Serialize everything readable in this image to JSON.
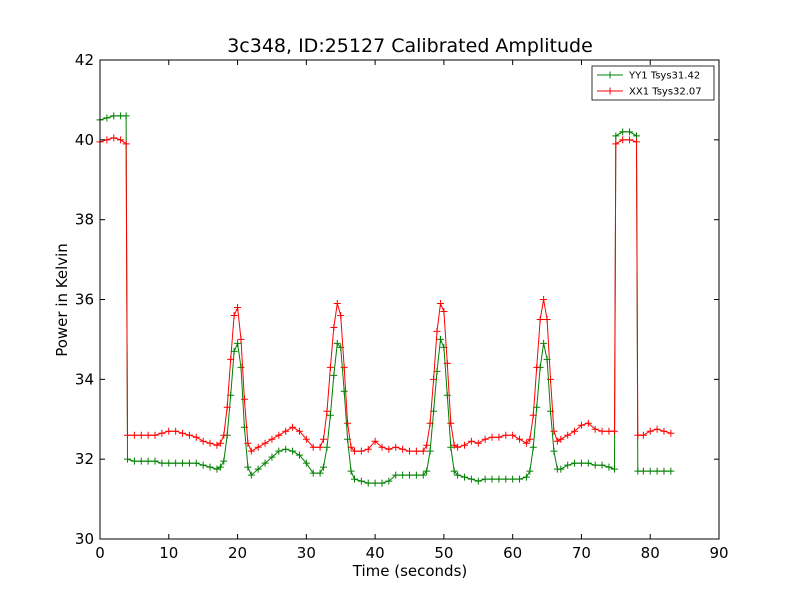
{
  "chart_data": {
    "type": "line",
    "title": "3c348, ID:25127 Calibrated Amplitude",
    "xlabel": "Time (seconds)",
    "ylabel": "Power in Kelvin",
    "xlim": [
      0,
      90
    ],
    "ylim": [
      30,
      42
    ],
    "xticks": [
      0,
      10,
      20,
      30,
      40,
      50,
      60,
      70,
      80,
      90
    ],
    "yticks": [
      30,
      32,
      34,
      36,
      38,
      40,
      42
    ],
    "grid": false,
    "legend_position": "top-right",
    "marker": "+",
    "series": [
      {
        "name": "YY1 Tsys31.42",
        "color": "#008000",
        "points": [
          [
            0,
            40.5
          ],
          [
            1,
            40.55
          ],
          [
            2,
            40.6
          ],
          [
            3,
            40.6
          ],
          [
            3.8,
            40.6
          ],
          [
            4,
            32.0
          ],
          [
            5,
            31.95
          ],
          [
            6,
            31.95
          ],
          [
            7,
            31.95
          ],
          [
            8,
            31.95
          ],
          [
            9,
            31.9
          ],
          [
            10,
            31.9
          ],
          [
            11,
            31.9
          ],
          [
            12,
            31.9
          ],
          [
            13,
            31.9
          ],
          [
            14,
            31.9
          ],
          [
            15,
            31.85
          ],
          [
            16,
            31.8
          ],
          [
            17,
            31.75
          ],
          [
            17.5,
            31.8
          ],
          [
            18,
            31.95
          ],
          [
            18.5,
            32.6
          ],
          [
            19,
            33.6
          ],
          [
            19.5,
            34.7
          ],
          [
            20,
            34.9
          ],
          [
            20.5,
            34.3
          ],
          [
            21,
            32.8
          ],
          [
            21.5,
            31.8
          ],
          [
            22,
            31.6
          ],
          [
            23,
            31.75
          ],
          [
            24,
            31.9
          ],
          [
            25,
            32.05
          ],
          [
            26,
            32.2
          ],
          [
            27,
            32.25
          ],
          [
            28,
            32.2
          ],
          [
            29,
            32.1
          ],
          [
            30,
            31.9
          ],
          [
            31,
            31.65
          ],
          [
            32,
            31.65
          ],
          [
            32.5,
            31.8
          ],
          [
            33,
            32.3
          ],
          [
            33.5,
            33.1
          ],
          [
            34,
            34.1
          ],
          [
            34.5,
            34.9
          ],
          [
            35,
            34.8
          ],
          [
            35.5,
            33.7
          ],
          [
            36,
            32.5
          ],
          [
            36.5,
            31.7
          ],
          [
            37,
            31.5
          ],
          [
            38,
            31.45
          ],
          [
            39,
            31.4
          ],
          [
            40,
            31.4
          ],
          [
            41,
            31.4
          ],
          [
            42,
            31.45
          ],
          [
            43,
            31.6
          ],
          [
            44,
            31.6
          ],
          [
            45,
            31.6
          ],
          [
            46,
            31.6
          ],
          [
            47,
            31.6
          ],
          [
            47.5,
            31.7
          ],
          [
            48,
            32.2
          ],
          [
            48.5,
            33.2
          ],
          [
            49,
            34.2
          ],
          [
            49.5,
            35.0
          ],
          [
            50,
            34.8
          ],
          [
            50.5,
            33.6
          ],
          [
            51,
            32.3
          ],
          [
            51.5,
            31.7
          ],
          [
            52,
            31.6
          ],
          [
            53,
            31.55
          ],
          [
            54,
            31.5
          ],
          [
            55,
            31.45
          ],
          [
            56,
            31.5
          ],
          [
            57,
            31.5
          ],
          [
            58,
            31.5
          ],
          [
            59,
            31.5
          ],
          [
            60,
            31.5
          ],
          [
            61,
            31.5
          ],
          [
            62,
            31.55
          ],
          [
            62.5,
            31.7
          ],
          [
            63,
            32.3
          ],
          [
            63.5,
            33.3
          ],
          [
            64,
            34.3
          ],
          [
            64.5,
            34.9
          ],
          [
            65,
            34.5
          ],
          [
            65.5,
            33.2
          ],
          [
            66,
            32.2
          ],
          [
            66.5,
            31.75
          ],
          [
            67,
            31.75
          ],
          [
            68,
            31.85
          ],
          [
            69,
            31.9
          ],
          [
            70,
            31.9
          ],
          [
            71,
            31.9
          ],
          [
            72,
            31.85
          ],
          [
            73,
            31.85
          ],
          [
            74,
            31.8
          ],
          [
            74.8,
            31.75
          ],
          [
            75,
            40.1
          ],
          [
            76,
            40.2
          ],
          [
            77,
            40.2
          ],
          [
            78,
            40.1
          ],
          [
            78.2,
            31.7
          ],
          [
            79,
            31.7
          ],
          [
            80,
            31.7
          ],
          [
            81,
            31.7
          ],
          [
            82,
            31.7
          ],
          [
            83,
            31.7
          ]
        ]
      },
      {
        "name": "XX1 Tsys32.07",
        "color": "#ff0000",
        "points": [
          [
            0,
            39.95
          ],
          [
            1,
            40.0
          ],
          [
            2,
            40.05
          ],
          [
            3,
            40.0
          ],
          [
            3.8,
            39.9
          ],
          [
            4,
            32.6
          ],
          [
            5,
            32.6
          ],
          [
            6,
            32.6
          ],
          [
            7,
            32.6
          ],
          [
            8,
            32.6
          ],
          [
            9,
            32.65
          ],
          [
            10,
            32.7
          ],
          [
            11,
            32.7
          ],
          [
            12,
            32.65
          ],
          [
            13,
            32.6
          ],
          [
            14,
            32.55
          ],
          [
            15,
            32.45
          ],
          [
            16,
            32.4
          ],
          [
            17,
            32.35
          ],
          [
            17.5,
            32.4
          ],
          [
            18,
            32.6
          ],
          [
            18.5,
            33.3
          ],
          [
            19,
            34.5
          ],
          [
            19.5,
            35.6
          ],
          [
            20,
            35.8
          ],
          [
            20.5,
            35.0
          ],
          [
            21,
            33.5
          ],
          [
            21.5,
            32.4
          ],
          [
            22,
            32.2
          ],
          [
            23,
            32.3
          ],
          [
            24,
            32.4
          ],
          [
            25,
            32.5
          ],
          [
            26,
            32.6
          ],
          [
            27,
            32.7
          ],
          [
            28,
            32.8
          ],
          [
            29,
            32.7
          ],
          [
            30,
            32.5
          ],
          [
            31,
            32.3
          ],
          [
            32,
            32.3
          ],
          [
            32.5,
            32.5
          ],
          [
            33,
            33.2
          ],
          [
            33.5,
            34.3
          ],
          [
            34,
            35.3
          ],
          [
            34.5,
            35.9
          ],
          [
            35,
            35.6
          ],
          [
            35.5,
            34.3
          ],
          [
            36,
            32.9
          ],
          [
            36.5,
            32.3
          ],
          [
            37,
            32.2
          ],
          [
            38,
            32.2
          ],
          [
            39,
            32.25
          ],
          [
            40,
            32.45
          ],
          [
            41,
            32.3
          ],
          [
            42,
            32.25
          ],
          [
            43,
            32.3
          ],
          [
            44,
            32.25
          ],
          [
            45,
            32.2
          ],
          [
            46,
            32.2
          ],
          [
            47,
            32.2
          ],
          [
            47.5,
            32.35
          ],
          [
            48,
            32.9
          ],
          [
            48.5,
            34.0
          ],
          [
            49,
            35.2
          ],
          [
            49.5,
            35.9
          ],
          [
            50,
            35.7
          ],
          [
            50.5,
            34.4
          ],
          [
            51,
            32.9
          ],
          [
            51.5,
            32.35
          ],
          [
            52,
            32.3
          ],
          [
            53,
            32.35
          ],
          [
            54,
            32.45
          ],
          [
            55,
            32.4
          ],
          [
            56,
            32.5
          ],
          [
            57,
            32.55
          ],
          [
            58,
            32.55
          ],
          [
            59,
            32.6
          ],
          [
            60,
            32.6
          ],
          [
            61,
            32.5
          ],
          [
            62,
            32.4
          ],
          [
            62.5,
            32.5
          ],
          [
            63,
            33.1
          ],
          [
            63.5,
            34.3
          ],
          [
            64,
            35.5
          ],
          [
            64.5,
            36.0
          ],
          [
            65,
            35.5
          ],
          [
            65.5,
            34.0
          ],
          [
            66,
            32.7
          ],
          [
            66.5,
            32.45
          ],
          [
            67,
            32.5
          ],
          [
            68,
            32.6
          ],
          [
            69,
            32.7
          ],
          [
            70,
            32.85
          ],
          [
            71,
            32.9
          ],
          [
            72,
            32.75
          ],
          [
            73,
            32.7
          ],
          [
            74,
            32.7
          ],
          [
            74.8,
            32.7
          ],
          [
            75,
            39.9
          ],
          [
            76,
            40.0
          ],
          [
            77,
            40.0
          ],
          [
            78,
            39.95
          ],
          [
            78.2,
            32.6
          ],
          [
            79,
            32.6
          ],
          [
            80,
            32.7
          ],
          [
            81,
            32.75
          ],
          [
            82,
            32.7
          ],
          [
            83,
            32.65
          ]
        ]
      }
    ]
  }
}
